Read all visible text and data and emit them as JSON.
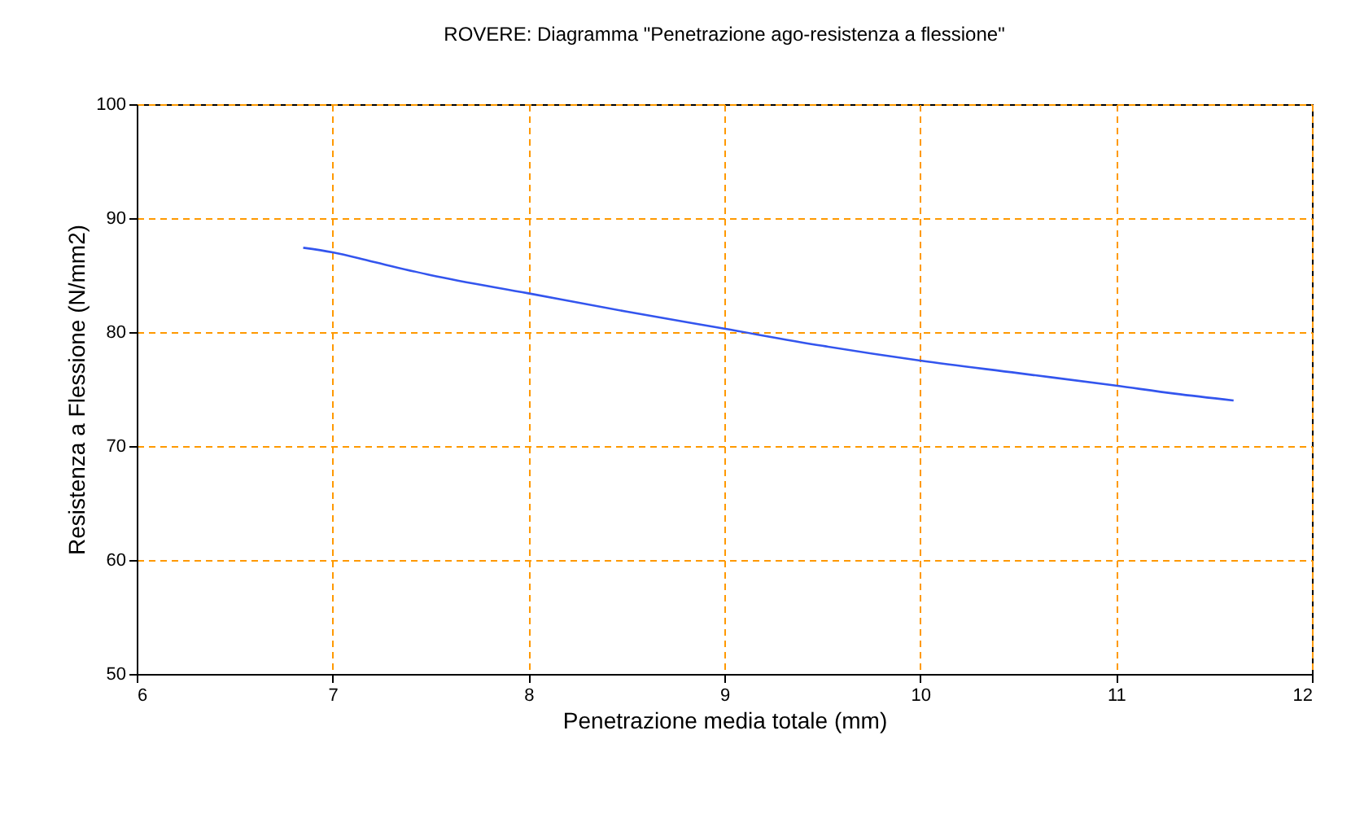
{
  "chart_data": {
    "type": "line",
    "title": "ROVERE: Diagramma \"Penetrazione ago-resistenza a flessione\"",
    "xlabel": "Penetrazione media totale (mm)",
    "ylabel": "Resistenza a Flessione (N/mm2)",
    "x": [
      6.85,
      7.0,
      7.2,
      7.5,
      8.0,
      8.5,
      9.0,
      9.5,
      10.0,
      10.5,
      11.0,
      11.3,
      11.6
    ],
    "series": [
      {
        "color": "#3355ee",
        "values": [
          87.4,
          87.0,
          86.2,
          85.0,
          83.4,
          81.8,
          80.3,
          78.8,
          77.5,
          76.4,
          75.3,
          74.6,
          74.0
        ]
      }
    ],
    "xlim": [
      6,
      12
    ],
    "ylim": [
      50,
      100
    ],
    "xticks": [
      6,
      7,
      8,
      9,
      10,
      11,
      12
    ],
    "yticks": [
      50,
      60,
      70,
      80,
      90,
      100
    ],
    "grid": true,
    "marker": "none",
    "line_style": "solid"
  }
}
